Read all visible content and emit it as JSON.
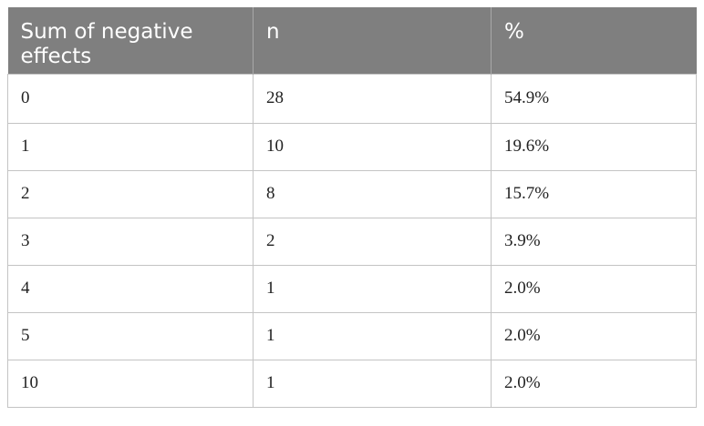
{
  "table": {
    "headers": [
      "Sum of negative effects",
      "n",
      "%"
    ],
    "rows": [
      [
        "0",
        "28",
        "54.9%"
      ],
      [
        "1",
        "10",
        "19.6%"
      ],
      [
        "2",
        "8",
        "15.7%"
      ],
      [
        "3",
        "2",
        "3.9%"
      ],
      [
        "4",
        "1",
        "2.0%"
      ],
      [
        "5",
        "1",
        "2.0%"
      ],
      [
        "10",
        "1",
        "2.0%"
      ]
    ]
  }
}
